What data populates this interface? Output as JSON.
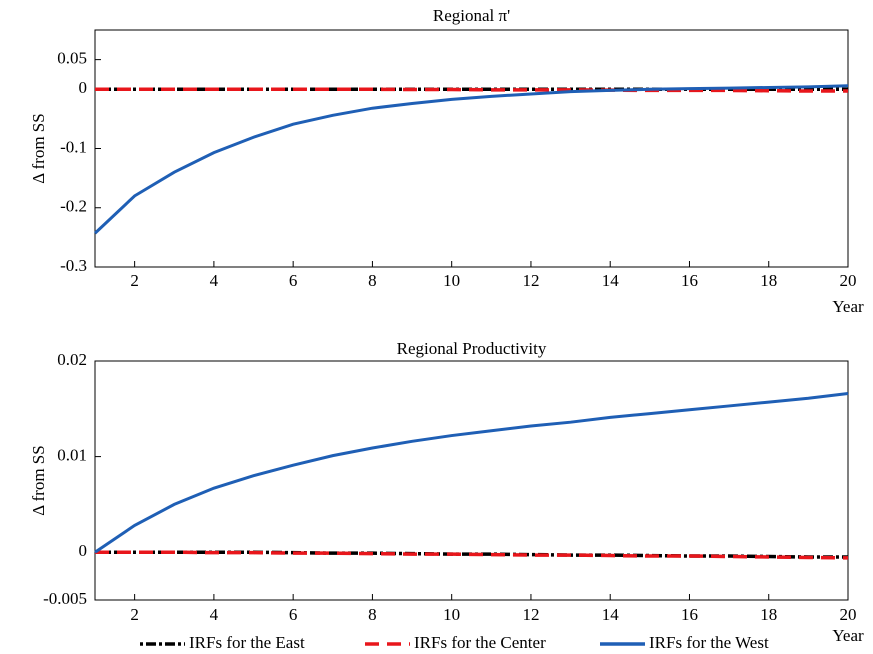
{
  "chart_data": [
    {
      "type": "line",
      "title": "Regional π'",
      "ylabel": "Δ from SS",
      "xlabel": "Year",
      "x": [
        1,
        2,
        3,
        4,
        5,
        6,
        7,
        8,
        9,
        10,
        11,
        12,
        13,
        14,
        15,
        16,
        17,
        18,
        19,
        20
      ],
      "xlim": [
        1,
        20
      ],
      "xticks": [
        2,
        4,
        6,
        8,
        10,
        12,
        14,
        16,
        18,
        20
      ],
      "ylim": [
        -0.3,
        0.1
      ],
      "yticks": [
        -0.3,
        -0.2,
        -0.1,
        0,
        0.05
      ],
      "series": [
        {
          "name": "IRFs for the East",
          "color": "#000000",
          "values": [
            0,
            0,
            0,
            0,
            0,
            0,
            0,
            0,
            0,
            0,
            0,
            0,
            0,
            0,
            0,
            0,
            0,
            0,
            0,
            0
          ]
        },
        {
          "name": "IRFs for the Center",
          "color": "#e8161b",
          "values": [
            0,
            0,
            0,
            0,
            0,
            0,
            0,
            0,
            -0.0005,
            -0.0005,
            -0.001,
            -0.001,
            -0.001,
            -0.0015,
            -0.002,
            -0.002,
            -0.002,
            -0.0025,
            -0.003,
            -0.003
          ]
        },
        {
          "name": "IRFs for the West",
          "color": "#1f5fb5",
          "values": [
            -0.243,
            -0.18,
            -0.14,
            -0.107,
            -0.081,
            -0.059,
            -0.044,
            -0.032,
            -0.024,
            -0.017,
            -0.012,
            -0.008,
            -0.004,
            -0.002,
            0,
            0.001,
            0.002,
            0.003,
            0.004,
            0.006
          ]
        }
      ]
    },
    {
      "type": "line",
      "title": "Regional Productivity",
      "ylabel": "Δ from SS",
      "xlabel": "Year",
      "x": [
        1,
        2,
        3,
        4,
        5,
        6,
        7,
        8,
        9,
        10,
        11,
        12,
        13,
        14,
        15,
        16,
        17,
        18,
        19,
        20
      ],
      "xlim": [
        1,
        20
      ],
      "xticks": [
        2,
        4,
        6,
        8,
        10,
        12,
        14,
        16,
        18,
        20
      ],
      "ylim": [
        -0.005,
        0.02
      ],
      "yticks": [
        -0.005,
        0,
        0.01,
        0.02
      ],
      "series": [
        {
          "name": "IRFs for the East",
          "color": "#000000",
          "values": [
            0,
            0,
            0,
            0,
            0,
            -5e-05,
            -0.0001,
            -0.0001,
            -0.00015,
            -0.0002,
            -0.0002,
            -0.00025,
            -0.0003,
            -0.0003,
            -0.00035,
            -0.0004,
            -0.0004,
            -0.00045,
            -0.0005,
            -0.0005
          ]
        },
        {
          "name": "IRFs for the Center",
          "color": "#e8161b",
          "values": [
            0,
            0,
            0,
            -5e-05,
            -5e-05,
            -0.0001,
            -0.0001,
            -0.00015,
            -0.0002,
            -0.0002,
            -0.00025,
            -0.0003,
            -0.0003,
            -0.00035,
            -0.0004,
            -0.0004,
            -0.00045,
            -0.0005,
            -0.00055,
            -0.0006
          ]
        },
        {
          "name": "IRFs for the West",
          "color": "#1f5fb5",
          "values": [
            0,
            0.0028,
            0.005,
            0.0067,
            0.008,
            0.0091,
            0.0101,
            0.0109,
            0.0116,
            0.0122,
            0.0127,
            0.0132,
            0.0136,
            0.0141,
            0.0145,
            0.0149,
            0.0153,
            0.0157,
            0.0161,
            0.0166
          ]
        }
      ]
    }
  ]
}
